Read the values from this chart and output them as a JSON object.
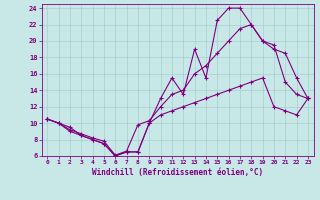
{
  "xlabel": "Windchill (Refroidissement éolien,°C)",
  "line_color": "#800080",
  "bg_color": "#c8e8e8",
  "grid_color": "#a0c8c8",
  "xlim_min": -0.5,
  "xlim_max": 23.5,
  "ylim_min": 6,
  "ylim_max": 24.5,
  "xticks": [
    0,
    1,
    2,
    3,
    4,
    5,
    6,
    7,
    8,
    9,
    10,
    11,
    12,
    13,
    14,
    15,
    16,
    17,
    18,
    19,
    20,
    21,
    22,
    23
  ],
  "yticks": [
    6,
    8,
    10,
    12,
    14,
    16,
    18,
    20,
    22,
    24
  ],
  "curve1_y": [
    10.5,
    10.0,
    9.5,
    8.5,
    8.0,
    7.5,
    6.0,
    6.5,
    6.5,
    10.0,
    13.0,
    15.5,
    13.5,
    19.0,
    15.5,
    22.5,
    24.0,
    24.0,
    22.0,
    20.0,
    19.0,
    18.5,
    15.5,
    13.0
  ],
  "curve2_y": [
    10.5,
    10.0,
    9.0,
    8.5,
    8.0,
    7.5,
    6.0,
    6.5,
    6.5,
    10.0,
    11.0,
    11.5,
    12.0,
    12.5,
    13.0,
    13.5,
    14.0,
    14.5,
    15.0,
    15.5,
    12.0,
    11.5,
    11.0,
    13.0
  ],
  "curve3_y": [
    10.5,
    10.0,
    9.2,
    8.7,
    8.2,
    7.8,
    6.1,
    6.6,
    9.8,
    10.3,
    12.0,
    13.5,
    14.0,
    16.0,
    17.0,
    18.5,
    20.0,
    21.5,
    22.0,
    20.0,
    19.5,
    15.0,
    13.5,
    13.0
  ],
  "tick_fontsize": 5.0,
  "xlabel_fontsize": 5.5
}
